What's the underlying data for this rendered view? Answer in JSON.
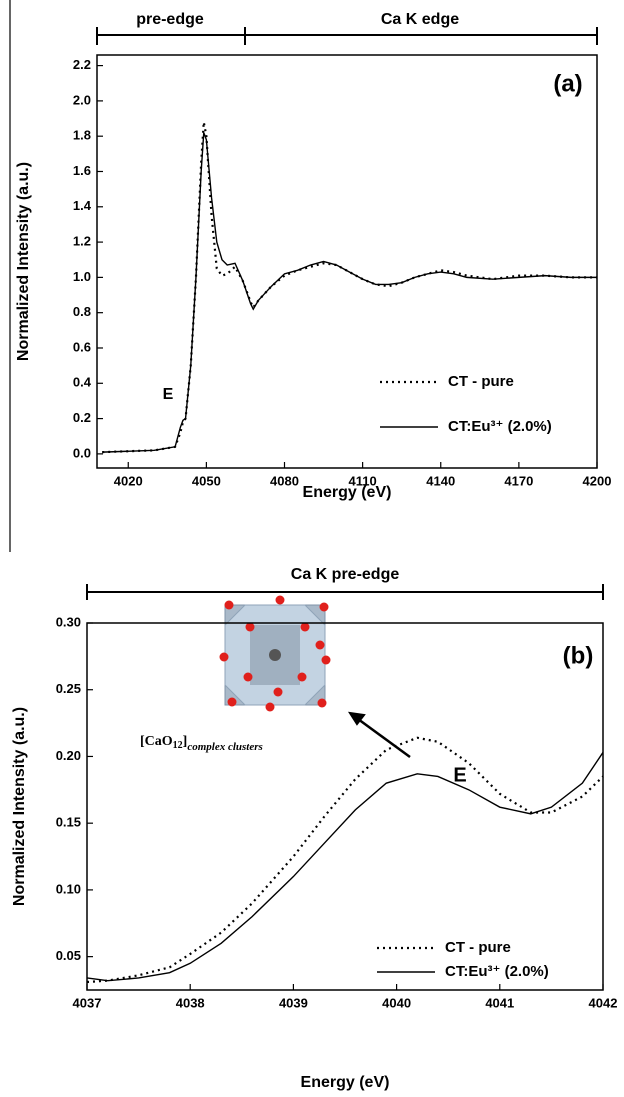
{
  "chart_data": [
    {
      "type": "line",
      "panel_label": "(a)",
      "annotation": "E",
      "brackets": [
        "pre-edge",
        "Ca K edge"
      ],
      "x_label": "Energy (eV)",
      "y_label": "Normalized Intensity (a.u.)",
      "xlim": [
        4008,
        4200
      ],
      "xticks": [
        4020,
        4050,
        4080,
        4110,
        4140,
        4170,
        4200
      ],
      "ylim": [
        -0.08,
        2.26
      ],
      "yticks": [
        {
          "value": 0,
          "label": "0.0"
        },
        0.2,
        0.4,
        0.6,
        0.8,
        {
          "value": 1,
          "label": "1.0"
        },
        1.2,
        1.4,
        1.6,
        1.8,
        {
          "value": 2,
          "label": "2.0"
        },
        2.2
      ],
      "x": [
        4010,
        4030,
        4038,
        4040,
        4041,
        4042,
        4044,
        4046,
        4048,
        4049,
        4050,
        4052,
        4054,
        4056,
        4058,
        4061,
        4064,
        4067,
        4068,
        4070,
        4075,
        4080,
        4085,
        4090,
        4095,
        4100,
        4105,
        4110,
        4115,
        4120,
        4125,
        4130,
        4135,
        4140,
        4145,
        4150,
        4160,
        4170,
        4180,
        4190,
        4200
      ],
      "series": [
        {
          "name": "CT - pure",
          "color": "#000000",
          "line_style": "dotted",
          "values": [
            0.01,
            0.02,
            0.04,
            0.12,
            0.18,
            0.2,
            0.5,
            1.0,
            1.65,
            1.88,
            1.8,
            1.35,
            1.05,
            1.01,
            1.02,
            1.06,
            0.98,
            0.86,
            0.83,
            0.87,
            0.95,
            1.01,
            1.04,
            1.06,
            1.08,
            1.07,
            1.03,
            0.99,
            0.96,
            0.95,
            0.97,
            1.0,
            1.02,
            1.04,
            1.03,
            1.01,
            0.99,
            1.01,
            1.01,
            1.0,
            1.0
          ]
        },
        {
          "name": "CT:Eu³⁺ (2.0%)",
          "color": "#000000",
          "line_style": "solid",
          "values": [
            0.01,
            0.02,
            0.04,
            0.15,
            0.19,
            0.2,
            0.5,
            1.0,
            1.6,
            1.82,
            1.78,
            1.45,
            1.2,
            1.1,
            1.07,
            1.08,
            0.98,
            0.85,
            0.82,
            0.87,
            0.95,
            1.02,
            1.04,
            1.07,
            1.09,
            1.07,
            1.03,
            0.99,
            0.96,
            0.96,
            0.97,
            1.0,
            1.02,
            1.03,
            1.02,
            1.0,
            0.99,
            1.0,
            1.01,
            1.0,
            1.0
          ]
        }
      ]
    },
    {
      "type": "line",
      "panel_label": "(b)",
      "annotation": "E",
      "brackets": [
        "Ca K pre-edge"
      ],
      "cluster_label": {
        "base": "[CaO",
        "count": "12",
        "close": "]",
        "subscript": "complex clusters"
      },
      "x_label": "Energy (eV)",
      "y_label": "Normalized Intensity (a.u.)",
      "xlim": [
        4037,
        4042
      ],
      "xticks": [
        4037,
        4038,
        4039,
        4040,
        4041,
        4042
      ],
      "ylim": [
        0.025,
        0.3
      ],
      "yticks": [
        0.05,
        {
          "value": 0.1,
          "label": "0.10"
        },
        0.15,
        {
          "value": 0.2,
          "label": "0.20"
        },
        0.25,
        {
          "value": 0.3,
          "label": "0.30"
        }
      ],
      "x": [
        4037,
        4037.2,
        4037.5,
        4037.8,
        4038,
        4038.3,
        4038.6,
        4039,
        4039.3,
        4039.6,
        4039.9,
        4040.2,
        4040.4,
        4040.7,
        4041,
        4041.3,
        4041.5,
        4041.8,
        4042
      ],
      "series": [
        {
          "name": "CT - pure",
          "color": "#000000",
          "line_style": "dotted",
          "values": [
            0.031,
            0.032,
            0.036,
            0.042,
            0.052,
            0.068,
            0.09,
            0.125,
            0.155,
            0.183,
            0.205,
            0.214,
            0.211,
            0.195,
            0.172,
            0.158,
            0.158,
            0.17,
            0.185
          ]
        },
        {
          "name": "CT:Eu³⁺ (2.0%)",
          "color": "#000000",
          "line_style": "solid",
          "values": [
            0.034,
            0.032,
            0.034,
            0.038,
            0.045,
            0.06,
            0.08,
            0.11,
            0.135,
            0.16,
            0.18,
            0.187,
            0.185,
            0.175,
            0.162,
            0.157,
            0.162,
            0.18,
            0.203
          ]
        }
      ]
    }
  ]
}
